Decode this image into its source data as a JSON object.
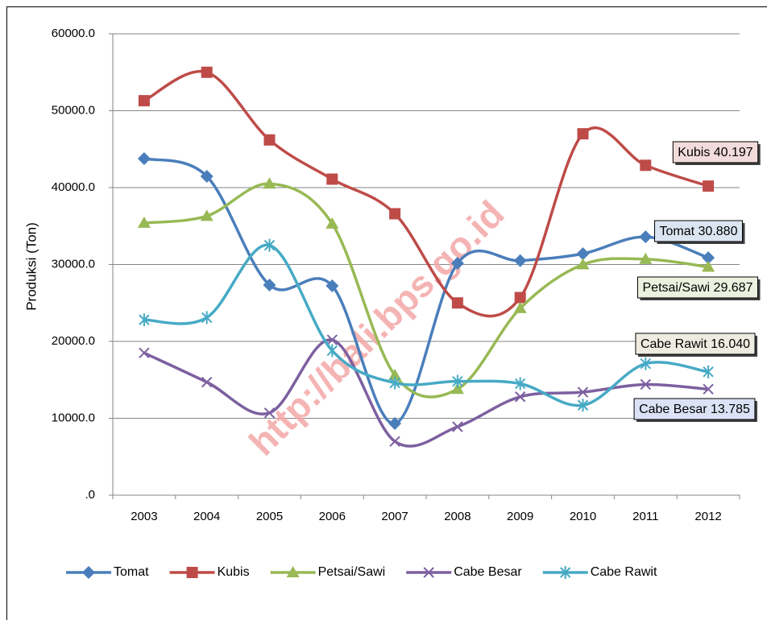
{
  "chart_data": {
    "type": "line",
    "y_label": "Produksi (Ton)",
    "watermark": "http://bali.bps.go.id",
    "categories": [
      "2003",
      "2004",
      "2005",
      "2006",
      "2007",
      "2008",
      "2009",
      "2010",
      "2011",
      "2012"
    ],
    "ylim": [
      0,
      60000
    ],
    "yticks": [
      {
        "value": 0,
        "label": ".0"
      },
      {
        "value": 10000,
        "label": "10000.0"
      },
      {
        "value": 20000,
        "label": "20000.0"
      },
      {
        "value": 30000,
        "label": "30000.0"
      },
      {
        "value": 40000,
        "label": "40000.0"
      },
      {
        "value": 50000,
        "label": "50000.0"
      },
      {
        "value": 60000,
        "label": "60000.0"
      }
    ],
    "grid": true,
    "legend": "bottom",
    "series": [
      {
        "name": "Tomat",
        "color": "#4a7ebb",
        "marker": "diamond",
        "values": [
          43770,
          41470,
          27330,
          27230,
          9320,
          30160,
          30500,
          31400,
          33600,
          30880
        ],
        "annotation": "Tomat 30.880",
        "annotation_color": "#dbe5f1"
      },
      {
        "name": "Kubis",
        "color": "#be4b48",
        "marker": "square",
        "values": [
          51300,
          55000,
          46200,
          41100,
          36600,
          25000,
          25700,
          47000,
          42900,
          40197
        ],
        "annotation": "Kubis 40.197",
        "annotation_color": "#f2dcdb"
      },
      {
        "name": "Petsai/Sawi",
        "color": "#98b954",
        "marker": "triangle",
        "values": [
          35400,
          36300,
          40500,
          35300,
          15600,
          13800,
          24300,
          30000,
          30700,
          29687
        ],
        "annotation": "Petsai/Sawi 29.687",
        "annotation_color": "#ebf1de"
      },
      {
        "name": "Cabe Besar",
        "color": "#7d60a0",
        "marker": "x",
        "values": [
          18500,
          14700,
          10700,
          20200,
          7000,
          8900,
          12800,
          13400,
          14400,
          13785
        ],
        "annotation": "Cabe Besar 13.785",
        "annotation_color": "#dbe2f5"
      },
      {
        "name": "Cabe Rawit",
        "color": "#46aac5",
        "marker": "star",
        "values": [
          22800,
          23100,
          32500,
          18800,
          14600,
          14800,
          14500,
          11700,
          17100,
          16040
        ],
        "annotation": "Cabe Rawit 16.040",
        "annotation_color": "#eeece1"
      }
    ]
  }
}
